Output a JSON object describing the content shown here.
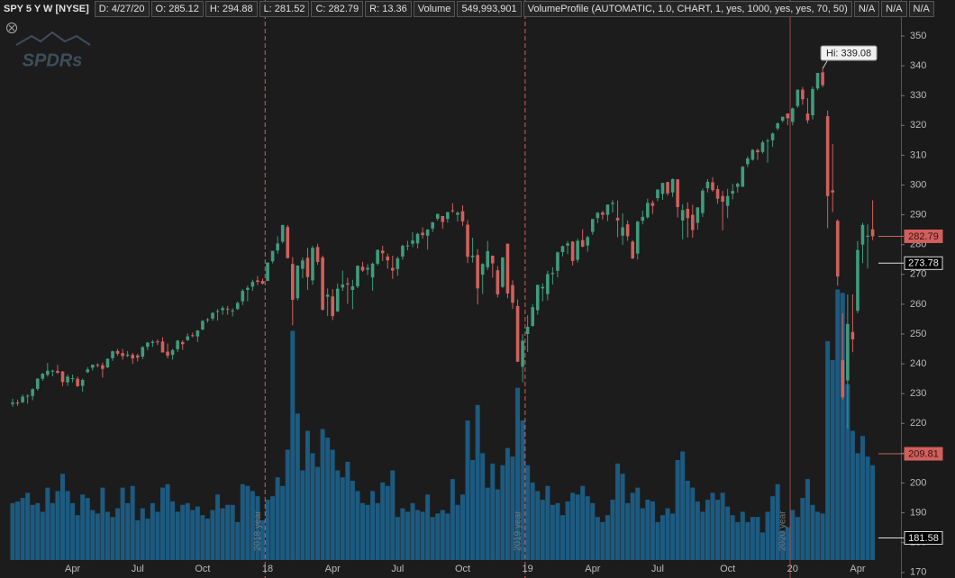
{
  "header": {
    "symbol": "SPY 5 Y W [NYSE]",
    "fields": [
      "D: 4/27/20",
      "O: 285.12",
      "H: 294.88",
      "L: 281.52",
      "C: 282.79",
      "R: 13.36"
    ],
    "volume_label": "Volume",
    "volume": "549,993,901",
    "study": "VolumeProfile (AUTOMATIC, 1.0, CHART, 1, yes, 1000, yes, yes, 70, 50)",
    "status": [
      "N/A",
      "N/A",
      "N/A"
    ]
  },
  "chart_data": {
    "type": "candlestick",
    "watermark": "SPDRs",
    "annotation": "Hi: 339.08",
    "up_color": "#3f9c7c",
    "down_color": "#d0605c",
    "volume_color": "#1d5a80",
    "ylim": [
      168.13,
      362.08
    ],
    "yticks": [
      170,
      180,
      190,
      200,
      210,
      220,
      230,
      240,
      250,
      260,
      270,
      280,
      290,
      300,
      310,
      320,
      330,
      340,
      350
    ],
    "volume_lim": [
      0,
      3250
    ],
    "price_markers": [
      {
        "value": 282.79,
        "color": "#d0605c"
      },
      {
        "value": 273.78,
        "color": "#000000"
      },
      {
        "value": 209.81,
        "color": "#d0605c"
      },
      {
        "value": 181.58,
        "color": "#000000"
      }
    ],
    "year_markers": [
      {
        "category": 51,
        "label": "2018 year",
        "dashed": true
      },
      {
        "category": 103,
        "label": "2019 year",
        "dashed": true
      },
      {
        "category": 156,
        "label": "2020 year",
        "dashed": false
      }
    ],
    "categories": [
      null,
      null,
      null,
      null,
      null,
      null,
      null,
      null,
      null,
      null,
      null,
      null,
      "Apr",
      null,
      null,
      null,
      null,
      null,
      null,
      null,
      null,
      null,
      null,
      null,
      null,
      "Jul",
      null,
      null,
      null,
      null,
      null,
      null,
      null,
      null,
      null,
      null,
      null,
      null,
      "Oct",
      null,
      null,
      null,
      null,
      null,
      null,
      null,
      null,
      null,
      null,
      null,
      null,
      "18",
      null,
      null,
      null,
      null,
      null,
      null,
      null,
      null,
      null,
      null,
      null,
      null,
      "Apr",
      null,
      null,
      null,
      null,
      null,
      null,
      null,
      null,
      null,
      null,
      null,
      null,
      "Jul",
      null,
      null,
      null,
      null,
      null,
      null,
      null,
      null,
      null,
      null,
      null,
      null,
      "Oct",
      null,
      null,
      null,
      null,
      null,
      null,
      null,
      null,
      null,
      null,
      null,
      null,
      "19",
      null,
      null,
      null,
      null,
      null,
      null,
      null,
      null,
      null,
      null,
      null,
      null,
      "Apr",
      null,
      null,
      null,
      null,
      null,
      null,
      null,
      null,
      null,
      null,
      null,
      null,
      "Jul",
      null,
      null,
      null,
      null,
      null,
      null,
      null,
      null,
      null,
      null,
      null,
      null,
      null,
      "Oct",
      null,
      null,
      null,
      null,
      null,
      null,
      null,
      null,
      null,
      null,
      null,
      null,
      "20",
      null,
      null,
      null,
      null,
      null,
      null,
      null,
      null,
      null,
      null,
      null,
      null,
      "Apr",
      null,
      null,
      null
    ],
    "ohlc": [
      [
        226.5,
        228.3,
        225.6,
        227.0
      ],
      [
        227.0,
        228.0,
        225.9,
        226.7
      ],
      [
        227.1,
        229.7,
        226.8,
        229.0
      ],
      [
        229.0,
        229.8,
        226.6,
        229.3
      ],
      [
        229.2,
        231.8,
        227.8,
        231.5
      ],
      [
        231.6,
        235.2,
        231.0,
        235.0
      ],
      [
        235.0,
        236.9,
        234.3,
        236.7
      ],
      [
        236.3,
        240.3,
        235.7,
        237.7
      ],
      [
        237.7,
        238.0,
        235.8,
        237.7
      ],
      [
        237.6,
        239.6,
        236.6,
        237.0
      ],
      [
        237.4,
        237.6,
        232.5,
        233.9
      ],
      [
        233.8,
        236.4,
        232.6,
        235.7
      ],
      [
        235.2,
        236.4,
        233.8,
        235.2
      ],
      [
        235.0,
        235.7,
        232.2,
        232.5
      ],
      [
        232.6,
        235.0,
        230.6,
        234.6
      ],
      [
        237.2,
        238.9,
        236.9,
        238.1
      ],
      [
        238.7,
        239.7,
        237.8,
        239.7
      ],
      [
        239.7,
        240.2,
        238.8,
        239.4
      ],
      [
        239.5,
        240.4,
        235.4,
        238.3
      ],
      [
        238.8,
        241.8,
        238.6,
        241.7
      ],
      [
        241.9,
        244.4,
        241.0,
        244.2
      ],
      [
        244.3,
        245.0,
        242.7,
        243.4
      ],
      [
        243.6,
        245.0,
        241.4,
        242.6
      ],
      [
        242.7,
        244.3,
        242.2,
        243.1
      ],
      [
        243.0,
        243.7,
        240.0,
        241.8
      ],
      [
        242.8,
        243.4,
        240.8,
        242.1
      ],
      [
        242.4,
        245.9,
        241.6,
        245.6
      ],
      [
        245.7,
        247.4,
        244.6,
        247.1
      ],
      [
        247.0,
        248.0,
        245.7,
        247.4
      ],
      [
        247.5,
        248.2,
        246.3,
        247.4
      ],
      [
        247.5,
        248.9,
        243.8,
        243.8
      ],
      [
        244.1,
        246.8,
        241.8,
        242.7
      ],
      [
        243.0,
        245.0,
        241.4,
        244.6
      ],
      [
        244.9,
        248.0,
        244.0,
        247.8
      ],
      [
        247.3,
        247.9,
        244.7,
        246.6
      ],
      [
        248.0,
        250.2,
        247.6,
        249.2
      ],
      [
        249.6,
        250.5,
        248.9,
        249.4
      ],
      [
        249.2,
        251.3,
        247.3,
        251.2
      ],
      [
        251.5,
        254.7,
        251.3,
        254.4
      ],
      [
        254.6,
        255.4,
        253.8,
        254.9
      ],
      [
        255.2,
        257.3,
        254.4,
        257.1
      ],
      [
        257.6,
        258.4,
        254.5,
        257.7
      ],
      [
        258.0,
        259.4,
        256.4,
        258.7
      ],
      [
        258.5,
        259.4,
        256.5,
        258.3
      ],
      [
        257.9,
        258.6,
        255.9,
        257.9
      ],
      [
        258.4,
        260.9,
        258.0,
        260.4
      ],
      [
        261.0,
        265.1,
        259.7,
        264.5
      ],
      [
        264.8,
        266.2,
        261.0,
        265.5
      ],
      [
        265.9,
        268.2,
        264.5,
        267.5
      ],
      [
        268.0,
        269.5,
        266.4,
        267.5
      ],
      [
        267.8,
        268.6,
        266.6,
        266.9
      ],
      [
        267.8,
        274.0,
        267.8,
        274.0
      ],
      [
        274.4,
        277.9,
        273.7,
        277.9
      ],
      [
        278.0,
        282.8,
        276.9,
        280.4
      ],
      [
        281.0,
        286.6,
        280.4,
        286.6
      ],
      [
        285.9,
        286.6,
        275.3,
        275.5
      ],
      [
        273.5,
        275.8,
        252.9,
        261.5
      ],
      [
        262.0,
        273.0,
        261.3,
        273.0
      ],
      [
        271.9,
        275.7,
        268.7,
        274.7
      ],
      [
        275.6,
        278.9,
        264.8,
        269.1
      ],
      [
        268.0,
        279.6,
        266.5,
        278.9
      ],
      [
        279.2,
        280.3,
        273.2,
        274.2
      ],
      [
        275.7,
        276.3,
        258.0,
        258.1
      ],
      [
        262.5,
        265.3,
        256.0,
        263.2
      ],
      [
        262.6,
        265.1,
        254.7,
        256.0
      ],
      [
        257.6,
        267.0,
        257.3,
        265.2
      ],
      [
        265.6,
        271.3,
        264.4,
        266.6
      ],
      [
        267.0,
        268.9,
        260.1,
        266.6
      ],
      [
        264.8,
        268.2,
        258.3,
        266.0
      ],
      [
        266.0,
        273.0,
        265.4,
        272.9
      ],
      [
        272.6,
        274.2,
        270.9,
        271.3
      ],
      [
        271.6,
        273.4,
        269.8,
        272.2
      ],
      [
        269.0,
        274.0,
        264.5,
        273.6
      ],
      [
        273.6,
        278.4,
        273.0,
        278.2
      ],
      [
        278.0,
        279.6,
        274.5,
        277.1
      ],
      [
        276.0,
        277.0,
        271.9,
        274.7
      ],
      [
        272.2,
        276.3,
        268.5,
        271.3
      ],
      [
        271.8,
        276.0,
        269.5,
        275.4
      ],
      [
        276.0,
        280.0,
        274.9,
        279.6
      ],
      [
        279.7,
        281.3,
        278.1,
        279.7
      ],
      [
        280.3,
        284.2,
        279.2,
        281.4
      ],
      [
        280.4,
        284.0,
        278.7,
        283.6
      ],
      [
        284.0,
        285.8,
        282.0,
        283.2
      ],
      [
        283.0,
        285.1,
        278.3,
        285.1
      ],
      [
        285.4,
        287.6,
        284.2,
        287.5
      ],
      [
        288.7,
        290.4,
        288.0,
        290.3
      ],
      [
        289.6,
        289.6,
        285.3,
        287.6
      ],
      [
        288.6,
        291.0,
        287.3,
        290.9
      ],
      [
        291.5,
        293.9,
        290.6,
        291.2
      ],
      [
        290.0,
        291.2,
        287.7,
        290.7
      ],
      [
        291.2,
        293.2,
        286.3,
        287.8
      ],
      [
        286.7,
        288.2,
        273.8,
        275.9
      ],
      [
        275.8,
        282.3,
        274.0,
        276.3
      ],
      [
        276.5,
        278.5,
        259.9,
        265.3
      ],
      [
        269.9,
        273.8,
        263.4,
        273.5
      ],
      [
        272.4,
        281.2,
        271.5,
        277.8
      ],
      [
        276.3,
        276.3,
        268.9,
        273.7
      ],
      [
        271.4,
        272.8,
        262.3,
        263.3
      ],
      [
        265.8,
        275.8,
        265.5,
        275.7
      ],
      [
        280.3,
        280.4,
        262.0,
        263.6
      ],
      [
        266.4,
        268.0,
        258.4,
        260.5
      ],
      [
        259.4,
        261.6,
        240.6,
        240.7
      ],
      [
        239.0,
        250.0,
        233.8,
        247.8
      ],
      [
        250.0,
        256.3,
        244.0,
        252.4
      ],
      [
        252.7,
        260.0,
        252.5,
        259.0
      ],
      [
        258.0,
        266.5,
        256.5,
        266.5
      ],
      [
        265.3,
        267.0,
        261.0,
        265.8
      ],
      [
        263.4,
        271.2,
        261.3,
        270.1
      ],
      [
        270.1,
        272.4,
        266.6,
        270.5
      ],
      [
        271.2,
        277.7,
        269.0,
        277.4
      ],
      [
        277.5,
        279.7,
        276.0,
        279.5
      ],
      [
        279.7,
        281.2,
        276.8,
        280.4
      ],
      [
        281.0,
        281.2,
        273.0,
        274.5
      ],
      [
        274.9,
        282.0,
        274.0,
        281.3
      ],
      [
        281.5,
        285.2,
        279.1,
        279.3
      ],
      [
        279.7,
        283.0,
        277.6,
        282.5
      ],
      [
        284.3,
        288.7,
        283.3,
        288.6
      ],
      [
        288.9,
        290.9,
        287.2,
        290.7
      ],
      [
        290.8,
        291.4,
        288.4,
        290.0
      ],
      [
        290.0,
        293.5,
        287.9,
        293.4
      ],
      [
        293.6,
        294.9,
        290.8,
        294.0
      ],
      [
        289.0,
        294.8,
        282.5,
        288.1
      ],
      [
        283.0,
        290.5,
        279.9,
        285.8
      ],
      [
        286.8,
        288.1,
        281.3,
        282.8
      ],
      [
        281.0,
        281.5,
        275.3,
        275.3
      ],
      [
        277.0,
        288.0,
        275.0,
        287.7
      ],
      [
        288.0,
        291.4,
        286.8,
        289.3
      ],
      [
        289.2,
        295.4,
        288.7,
        294.0
      ],
      [
        294.0,
        294.8,
        290.3,
        293.0
      ],
      [
        295.6,
        298.5,
        294.6,
        298.5
      ],
      [
        297.0,
        300.7,
        295.0,
        300.7
      ],
      [
        301.0,
        301.1,
        296.4,
        297.2
      ],
      [
        297.5,
        302.2,
        296.0,
        302.0
      ],
      [
        301.9,
        302.0,
        289.1,
        292.6
      ],
      [
        288.1,
        293.6,
        281.7,
        291.6
      ],
      [
        292.0,
        294.2,
        282.4,
        288.9
      ],
      [
        290.0,
        293.4,
        282.3,
        284.9
      ],
      [
        287.3,
        292.5,
        285.0,
        292.5
      ],
      [
        290.6,
        298.8,
        289.3,
        298.1
      ],
      [
        298.9,
        302.0,
        297.5,
        301.1
      ],
      [
        300.9,
        302.6,
        297.7,
        298.3
      ],
      [
        298.6,
        299.8,
        293.7,
        295.4
      ],
      [
        296.3,
        298.0,
        284.8,
        294.4
      ],
      [
        293.0,
        298.7,
        288.9,
        296.3
      ],
      [
        297.1,
        300.4,
        295.2,
        298.0
      ],
      [
        299.4,
        300.8,
        297.4,
        300.4
      ],
      [
        299.4,
        306.4,
        299.4,
        306.1
      ],
      [
        307.0,
        309.6,
        306.0,
        308.9
      ],
      [
        308.5,
        312.0,
        308.2,
        311.8
      ],
      [
        311.7,
        312.2,
        308.4,
        311.0
      ],
      [
        311.1,
        314.9,
        310.6,
        314.3
      ],
      [
        314.6,
        315.5,
        307.5,
        314.9
      ],
      [
        315.0,
        317.6,
        312.8,
        317.3
      ],
      [
        319.0,
        321.0,
        318.3,
        320.7
      ],
      [
        321.6,
        323.0,
        321.0,
        322.9
      ],
      [
        324.0,
        324.0,
        320.1,
        322.4
      ],
      [
        321.2,
        326.0,
        320.0,
        325.7
      ],
      [
        326.5,
        332.0,
        325.9,
        332.0
      ],
      [
        332.0,
        332.9,
        326.9,
        328.8
      ],
      [
        324.0,
        329.2,
        320.7,
        321.7
      ],
      [
        323.4,
        333.0,
        322.0,
        332.2
      ],
      [
        332.4,
        337.6,
        331.8,
        337.6
      ],
      [
        337.8,
        339.08,
        332.8,
        333.5
      ],
      [
        323.1,
        325.0,
        285.5,
        296.3
      ],
      [
        298.2,
        313.8,
        290.9,
        297.5
      ],
      [
        288.0,
        288.5,
        266.2,
        269.3
      ],
      [
        241.2,
        256.9,
        228.0,
        228.8
      ],
      [
        234.4,
        263.3,
        218.3,
        253.4
      ],
      [
        250.7,
        263.3,
        243.9,
        248.2
      ],
      [
        257.8,
        281.2,
        257.0,
        278.2
      ],
      [
        280.0,
        287.3,
        273.8,
        286.6
      ],
      [
        282.6,
        286.8,
        272.0,
        283.0
      ],
      [
        285.12,
        294.88,
        281.52,
        282.79
      ]
    ],
    "volume": [
      330,
      340,
      360,
      390,
      320,
      330,
      280,
      420,
      330,
      400,
      500,
      400,
      330,
      260,
      380,
      360,
      290,
      270,
      420,
      280,
      250,
      300,
      420,
      330,
      430,
      230,
      300,
      240,
      330,
      280,
      420,
      440,
      340,
      280,
      320,
      330,
      290,
      310,
      260,
      240,
      290,
      380,
      300,
      320,
      320,
      220,
      440,
      430,
      400,
      370,
      230,
      350,
      370,
      480,
      430,
      640,
      1330,
      850,
      520,
      750,
      620,
      540,
      760,
      710,
      640,
      520,
      480,
      570,
      460,
      400,
      330,
      320,
      400,
      330,
      450,
      430,
      520,
      250,
      300,
      280,
      330,
      290,
      280,
      380,
      250,
      270,
      290,
      270,
      470,
      320,
      380,
      810,
      580,
      900,
      620,
      420,
      560,
      410,
      550,
      650,
      600,
      1000,
      810,
      550,
      450,
      400,
      350,
      430,
      320,
      330,
      260,
      340,
      390,
      380,
      430,
      370,
      330,
      250,
      220,
      260,
      350,
      560,
      500,
      330,
      390,
      420,
      300,
      350,
      340,
      220,
      260,
      300,
      270,
      580,
      630,
      460,
      420,
      340,
      280,
      350,
      390,
      350,
      390,
      310,
      260,
      220,
      280,
      220,
      250,
      250,
      160,
      280,
      370,
      440,
      170,
      190,
      290,
      250,
      360,
      470,
      320,
      280,
      270,
      1270,
      1160,
      1570,
      1550,
      1020,
      750,
      620,
      720,
      600,
      549.993901
    ]
  }
}
